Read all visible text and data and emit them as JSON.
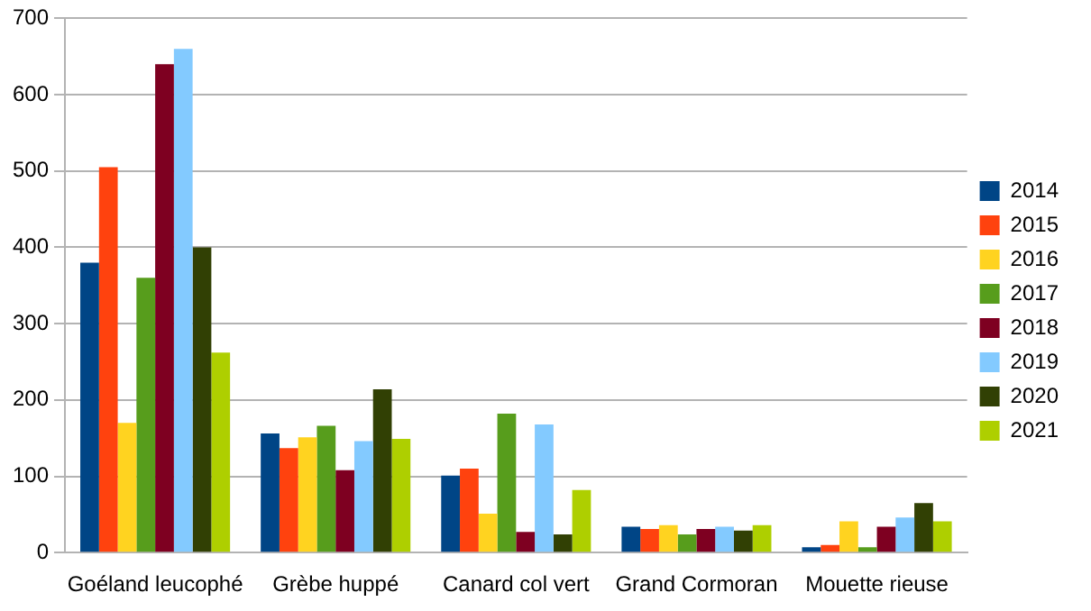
{
  "chart_data": {
    "type": "bar",
    "categories": [
      "Goéland leucophé",
      "Grèbe huppé",
      "Canard col vert",
      "Grand Cormoran",
      "Mouette rieuse"
    ],
    "series": [
      {
        "name": "2014",
        "color": "#004586",
        "values": [
          380,
          156,
          101,
          34,
          7
        ]
      },
      {
        "name": "2015",
        "color": "#ff420e",
        "values": [
          505,
          137,
          110,
          31,
          10
        ]
      },
      {
        "name": "2016",
        "color": "#ffd320",
        "values": [
          170,
          151,
          51,
          36,
          41
        ]
      },
      {
        "name": "2017",
        "color": "#579d1c",
        "values": [
          360,
          166,
          182,
          24,
          7
        ]
      },
      {
        "name": "2018",
        "color": "#7e0021",
        "values": [
          640,
          108,
          27,
          31,
          34
        ]
      },
      {
        "name": "2019",
        "color": "#83caff",
        "values": [
          660,
          146,
          168,
          34,
          46
        ]
      },
      {
        "name": "2020",
        "color": "#314004",
        "values": [
          400,
          214,
          24,
          29,
          65
        ]
      },
      {
        "name": "2021",
        "color": "#aecf00",
        "values": [
          262,
          149,
          82,
          36,
          41
        ]
      }
    ],
    "ylim": [
      0,
      700
    ],
    "yticks": [
      0,
      100,
      200,
      300,
      400,
      500,
      600,
      700
    ],
    "grid": "y",
    "legend": "right"
  }
}
